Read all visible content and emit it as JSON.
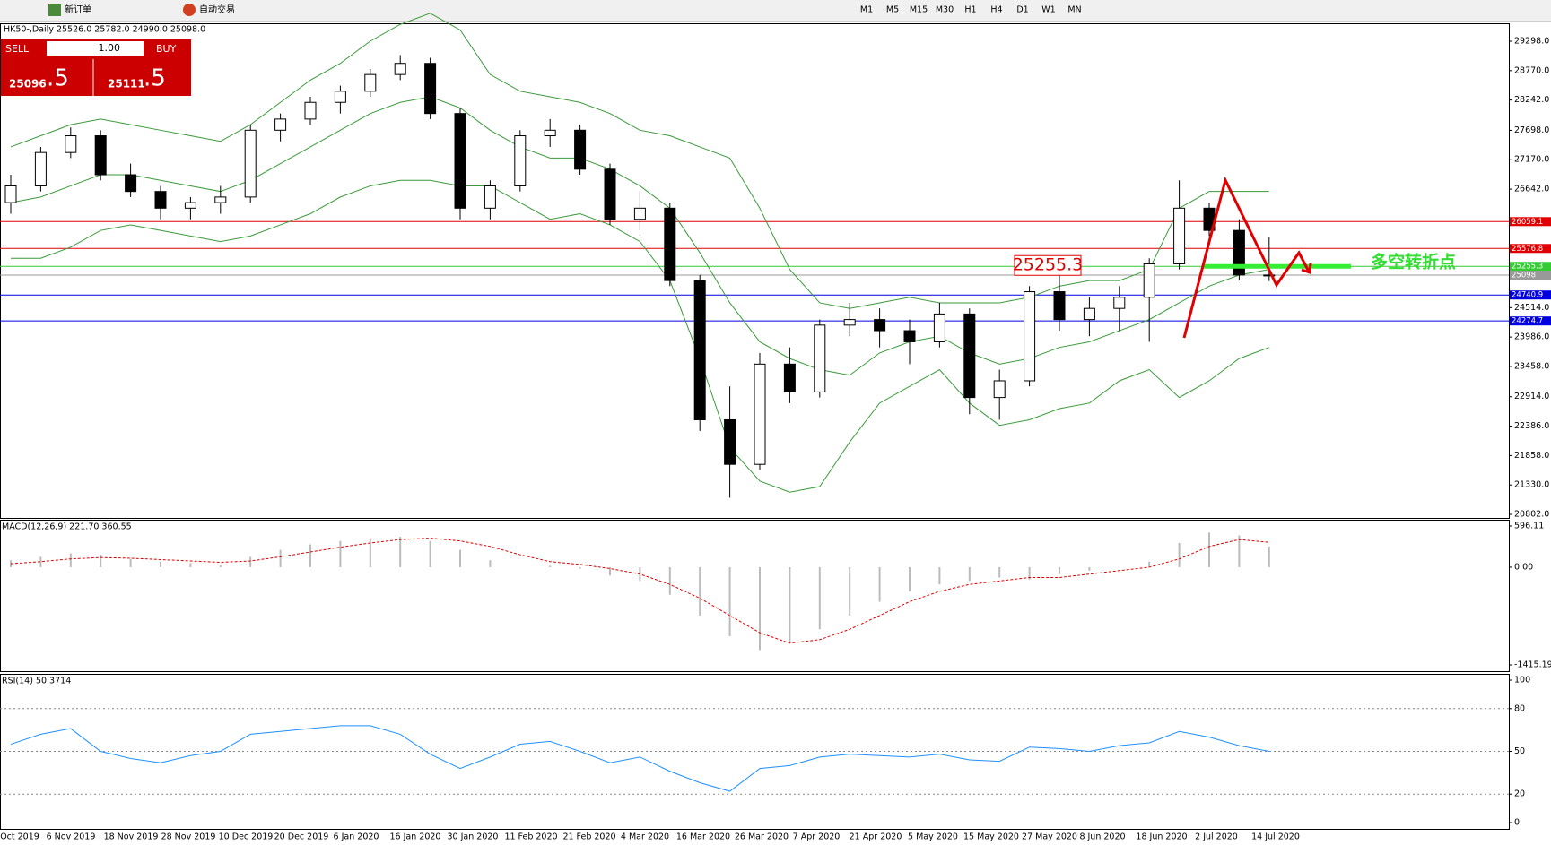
{
  "toolbar": {
    "new_order": "新订单",
    "auto_trading": "自动交易",
    "timeframes": [
      "M1",
      "M5",
      "M15",
      "M30",
      "H1",
      "H4",
      "D1",
      "W1",
      "MN"
    ]
  },
  "chart": {
    "header": "HK50-,Daily  25526.0 25782.0 24990.0 25098.0",
    "trade_panel": {
      "sell": "SELL",
      "buy": "BUY",
      "volume": "1.00",
      "sell_price_main": "25096",
      "sell_price_tail": ".5",
      "buy_price_main": "25111",
      "buy_price_tail": ".5"
    },
    "price_ticks": [
      {
        "value": 29298,
        "label": "29298.0"
      },
      {
        "value": 28770,
        "label": "28770.0"
      },
      {
        "value": 28242,
        "label": "28242.0"
      },
      {
        "value": 27698,
        "label": "27698.0"
      },
      {
        "value": 27170,
        "label": "27170.0"
      },
      {
        "value": 26642,
        "label": "26642.0"
      },
      {
        "value": 24514,
        "label": "24514.0"
      },
      {
        "value": 23986,
        "label": "23986.0"
      },
      {
        "value": 23458,
        "label": "23458.0"
      },
      {
        "value": 22914,
        "label": "22914.0"
      },
      {
        "value": 22386,
        "label": "22386.0"
      },
      {
        "value": 21858,
        "label": "21858.0"
      },
      {
        "value": 21330,
        "label": "21330.0"
      },
      {
        "value": 20802,
        "label": "20802.0"
      }
    ],
    "price_lim": [
      20802,
      29298
    ],
    "levels": [
      {
        "value": 26059.1,
        "color": "#e00000"
      },
      {
        "value": 25576.8,
        "color": "#e00000"
      },
      {
        "value": 25255.3,
        "color": "#33cc33"
      },
      {
        "value": 25098,
        "color": "#999999"
      },
      {
        "value": 24740.9,
        "color": "#0000e0"
      },
      {
        "value": 24274.7,
        "color": "#0000e0"
      }
    ],
    "annotation_box": "25255.3",
    "annotation_text": "多空转折点",
    "dates": [
      "Oct 2019",
      "6 Nov 2019",
      "18 Nov 2019",
      "28 Nov 2019",
      "10 Dec 2019",
      "20 Dec 2019",
      "6 Jan 2020",
      "16 Jan 2020",
      "30 Jan 2020",
      "11 Feb 2020",
      "21 Feb 2020",
      "4 Mar 2020",
      "16 Mar 2020",
      "26 Mar 2020",
      "7 Apr 2020",
      "21 Apr 2020",
      "5 May 2020",
      "15 May 2020",
      "27 May 2020",
      "8 Jun 2020",
      "18 Jun 2020",
      "2 Jul 2020",
      "14 Jul 2020"
    ],
    "candles": [
      [
        26400,
        26900,
        26200,
        26700
      ],
      [
        26700,
        27400,
        26600,
        27300
      ],
      [
        27300,
        27750,
        27200,
        27600
      ],
      [
        27600,
        27700,
        26800,
        26900
      ],
      [
        26900,
        27100,
        26500,
        26600
      ],
      [
        26600,
        26700,
        26100,
        26300
      ],
      [
        26300,
        26500,
        26100,
        26400
      ],
      [
        26400,
        26700,
        26200,
        26500
      ],
      [
        26500,
        27800,
        26400,
        27700
      ],
      [
        27700,
        28000,
        27500,
        27900
      ],
      [
        27900,
        28300,
        27800,
        28200
      ],
      [
        28200,
        28500,
        28000,
        28400
      ],
      [
        28400,
        28800,
        28300,
        28700
      ],
      [
        28700,
        29050,
        28600,
        28900
      ],
      [
        28900,
        29000,
        27900,
        28000
      ],
      [
        28000,
        28100,
        26100,
        26300
      ],
      [
        26300,
        26800,
        26100,
        26700
      ],
      [
        26700,
        27700,
        26600,
        27600
      ],
      [
        27600,
        27900,
        27400,
        27700
      ],
      [
        27700,
        27800,
        26900,
        27000
      ],
      [
        27000,
        27100,
        26000,
        26100
      ],
      [
        26100,
        26600,
        25900,
        26300
      ],
      [
        26300,
        26400,
        24900,
        25000
      ],
      [
        25000,
        25100,
        22300,
        22500
      ],
      [
        22500,
        23100,
        21100,
        21700
      ],
      [
        21700,
        23700,
        21600,
        23500
      ],
      [
        23500,
        23800,
        22800,
        23000
      ],
      [
        23000,
        24300,
        22900,
        24200
      ],
      [
        24200,
        24600,
        24000,
        24300
      ],
      [
        24300,
        24500,
        23800,
        24100
      ],
      [
        24100,
        24300,
        23500,
        23900
      ],
      [
        23900,
        24600,
        23800,
        24400
      ],
      [
        24400,
        24500,
        22600,
        22900
      ],
      [
        22900,
        23400,
        22500,
        23200
      ],
      [
        23200,
        24900,
        23100,
        24800
      ],
      [
        24800,
        25100,
        24100,
        24300
      ],
      [
        24300,
        24700,
        24000,
        24500
      ],
      [
        24500,
        24900,
        24100,
        24700
      ],
      [
        24700,
        25400,
        23900,
        25300
      ],
      [
        25300,
        26800,
        25200,
        26300
      ],
      [
        26300,
        26400,
        25800,
        25900
      ],
      [
        25900,
        26100,
        25000,
        25100
      ],
      [
        25100,
        25782,
        24990,
        25098
      ]
    ],
    "bands": {
      "upper": [
        27400,
        27600,
        27800,
        27900,
        27800,
        27700,
        27600,
        27500,
        27800,
        28200,
        28600,
        28900,
        29300,
        29600,
        29800,
        29500,
        28700,
        28400,
        28300,
        28200,
        28000,
        27700,
        27600,
        27400,
        27200,
        26300,
        25200,
        24600,
        24500,
        24600,
        24700,
        24600,
        24600,
        24600,
        24700,
        24900,
        25000,
        25000,
        25200,
        26300,
        26600,
        26600,
        26600
      ],
      "middle": [
        26400,
        26500,
        26700,
        26900,
        26900,
        26800,
        26700,
        26600,
        26800,
        27100,
        27400,
        27700,
        28000,
        28200,
        28300,
        28100,
        27700,
        27400,
        27200,
        27200,
        27000,
        26700,
        26300,
        25500,
        24600,
        23900,
        23600,
        23400,
        23300,
        23700,
        23900,
        24000,
        23700,
        23500,
        23600,
        23800,
        23900,
        24100,
        24300,
        24600,
        24900,
        25100,
        25200
      ],
      "lower": [
        25400,
        25400,
        25600,
        25900,
        26000,
        25900,
        25800,
        25700,
        25800,
        26000,
        26200,
        26500,
        26700,
        26800,
        26800,
        26700,
        26700,
        26400,
        26100,
        26200,
        26000,
        25700,
        25000,
        23600,
        22000,
        21400,
        21200,
        21300,
        22100,
        22800,
        23100,
        23400,
        22800,
        22400,
        22500,
        22700,
        22800,
        23200,
        23400,
        22900,
        23200,
        23600,
        23800
      ]
    },
    "macd": {
      "label": "MACD(12,26,9) 221.70 360.55",
      "lim": [
        -1415.19,
        596.11
      ],
      "ticks": [
        596.11,
        {
          "value": 0,
          "label": "0.00"
        },
        -1415.19
      ],
      "histogram": [
        100,
        150,
        200,
        180,
        120,
        80,
        60,
        40,
        150,
        250,
        330,
        380,
        420,
        440,
        380,
        250,
        100,
        0,
        20,
        -20,
        -120,
        -200,
        -400,
        -700,
        -1000,
        -1200,
        -1100,
        -900,
        -700,
        -500,
        -350,
        -250,
        -200,
        -150,
        -180,
        -100,
        -50,
        0,
        80,
        350,
        500,
        460,
        300
      ],
      "signal": [
        50,
        80,
        120,
        140,
        130,
        110,
        90,
        70,
        90,
        150,
        220,
        290,
        350,
        400,
        420,
        380,
        300,
        180,
        80,
        40,
        -20,
        -100,
        -250,
        -450,
        -700,
        -950,
        -1100,
        -1050,
        -900,
        -700,
        -500,
        -350,
        -250,
        -200,
        -150,
        -150,
        -100,
        -50,
        0,
        120,
        300,
        400,
        360
      ]
    },
    "rsi": {
      "label": "RSI(14) 50.3714",
      "lim": [
        0,
        100
      ],
      "ticks": [
        100,
        80,
        50,
        20,
        0
      ],
      "levels": [
        80,
        50,
        20
      ],
      "values": [
        55,
        62,
        66,
        50,
        45,
        42,
        47,
        50,
        62,
        64,
        66,
        68,
        68,
        62,
        48,
        38,
        46,
        55,
        57,
        50,
        42,
        46,
        36,
        28,
        22,
        38,
        40,
        46,
        48,
        47,
        46,
        48,
        44,
        43,
        53,
        52,
        50,
        54,
        56,
        64,
        60,
        54,
        50
      ]
    }
  }
}
